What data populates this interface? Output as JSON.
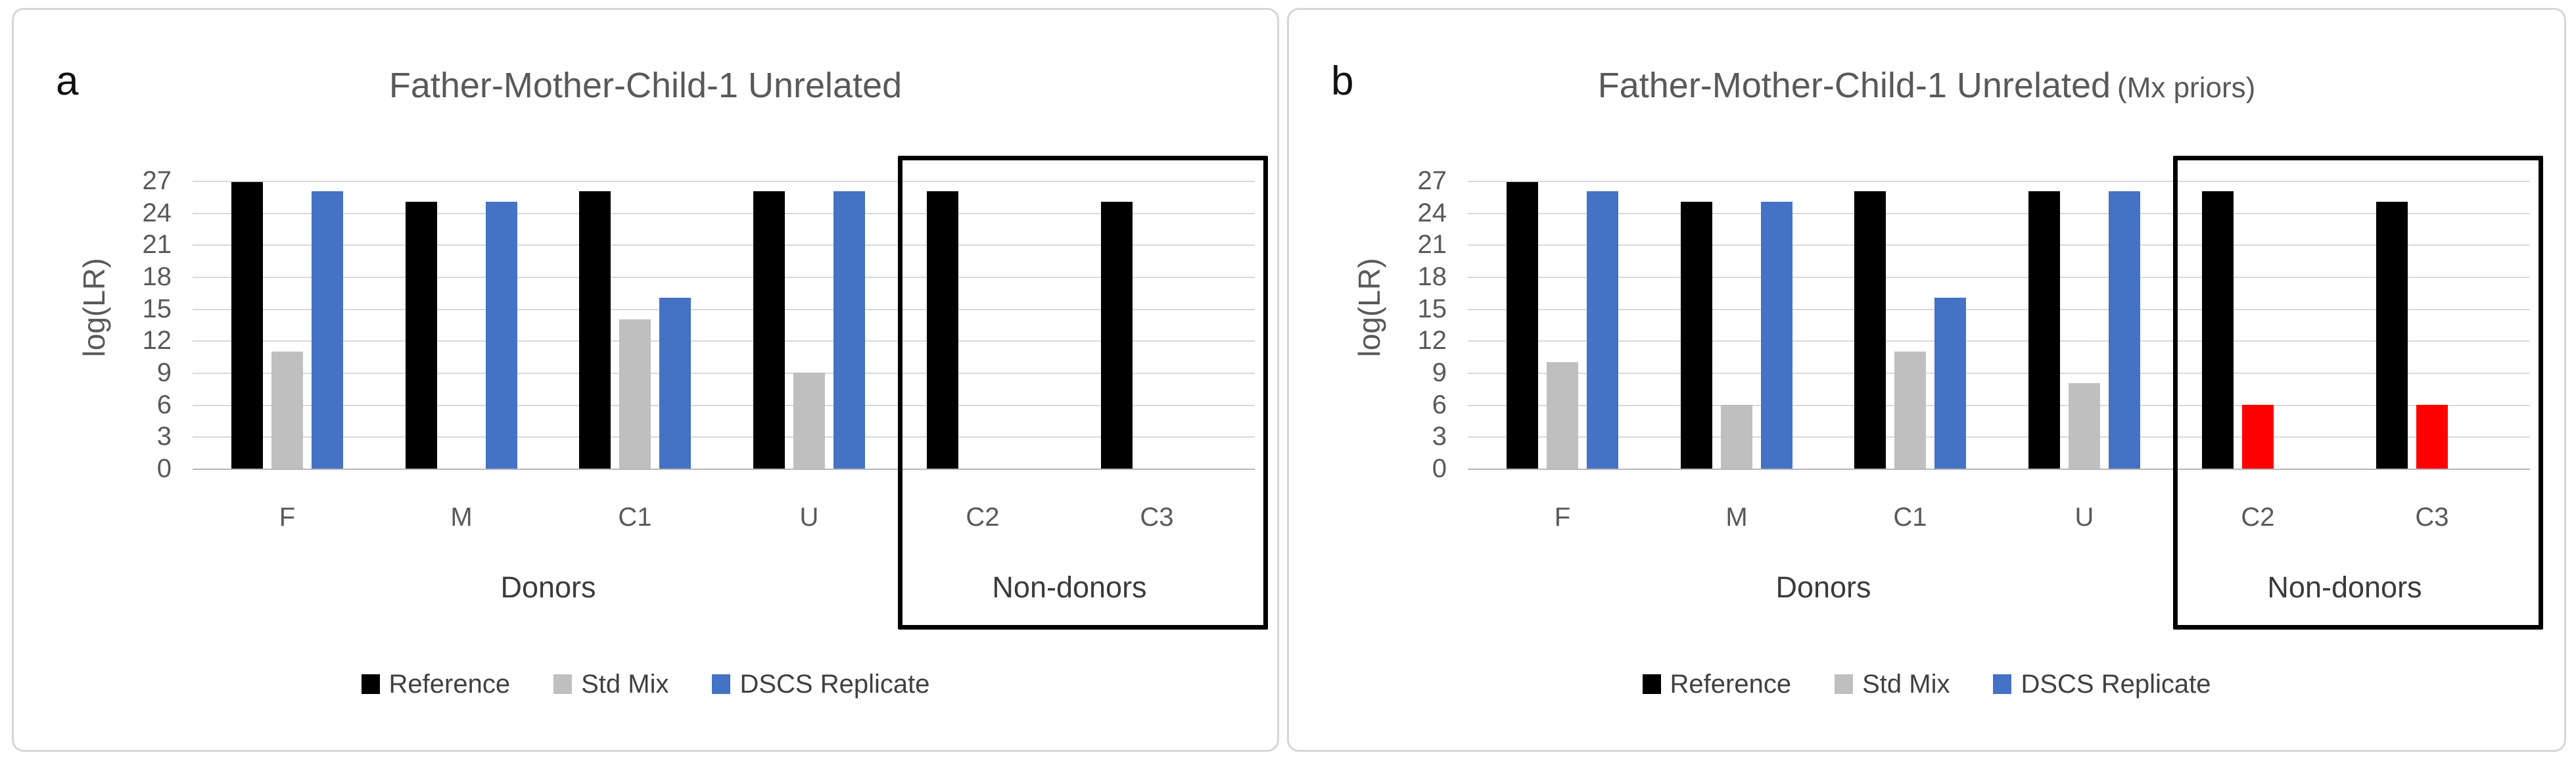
{
  "figure": {
    "background": "#ffffff",
    "panel_border_color": "#d6d6d6",
    "gridline_color": "#d9d9d9",
    "nondonor_box_color": "#000000",
    "title_color": "#595959",
    "axis_text_color": "#595959",
    "highlight_color": "#ff0000"
  },
  "chart_data": [
    {
      "type": "bar",
      "panel_letter": "a",
      "title": "Father-Mother-Child-1 Unrelated",
      "title_suffix": "",
      "ylabel": "log(LR)",
      "xlabel_donors": "Donors",
      "xlabel_nondonors": "Non-donors",
      "ylim": [
        0,
        27
      ],
      "yticks": [
        0,
        3,
        6,
        9,
        12,
        15,
        18,
        21,
        24,
        27
      ],
      "gridlines": "horizontal",
      "legend_position": "bottom",
      "categories": [
        "F",
        "M",
        "C1",
        "U",
        "C2",
        "C3"
      ],
      "donor_categories": [
        "F",
        "M",
        "C1",
        "U"
      ],
      "nondonor_categories": [
        "C2",
        "C3"
      ],
      "series": [
        {
          "name": "Reference",
          "color": "#000000",
          "values": [
            26.9,
            25,
            26,
            26,
            26,
            25
          ]
        },
        {
          "name": "Std Mix",
          "color": "#bfbfbf",
          "values": [
            11,
            0,
            14,
            9,
            0,
            0
          ]
        },
        {
          "name": "DSCS Replicate",
          "color": "#4472c4",
          "values": [
            26,
            25,
            16,
            26,
            0,
            0
          ]
        }
      ]
    },
    {
      "type": "bar",
      "panel_letter": "b",
      "title": "Father-Mother-Child-1 Unrelated",
      "title_suffix": "(Mx priors)",
      "ylabel": "log(LR)",
      "xlabel_donors": "Donors",
      "xlabel_nondonors": "Non-donors",
      "ylim": [
        0,
        27
      ],
      "yticks": [
        0,
        3,
        6,
        9,
        12,
        15,
        18,
        21,
        24,
        27
      ],
      "gridlines": "horizontal",
      "legend_position": "bottom",
      "categories": [
        "F",
        "M",
        "C1",
        "U",
        "C2",
        "C3"
      ],
      "donor_categories": [
        "F",
        "M",
        "C1",
        "U"
      ],
      "nondonor_categories": [
        "C2",
        "C3"
      ],
      "series": [
        {
          "name": "Reference",
          "color": "#000000",
          "values": [
            26.9,
            25,
            26,
            26,
            26,
            25
          ]
        },
        {
          "name": "Std Mix",
          "color": "#bfbfbf",
          "values": [
            10,
            6,
            11,
            8,
            6,
            6
          ],
          "point_colors": [
            null,
            null,
            null,
            null,
            "#ff0000",
            "#ff0000"
          ]
        },
        {
          "name": "DSCS Replicate",
          "color": "#4472c4",
          "values": [
            26,
            25,
            16,
            26,
            0,
            0
          ]
        }
      ]
    }
  ]
}
